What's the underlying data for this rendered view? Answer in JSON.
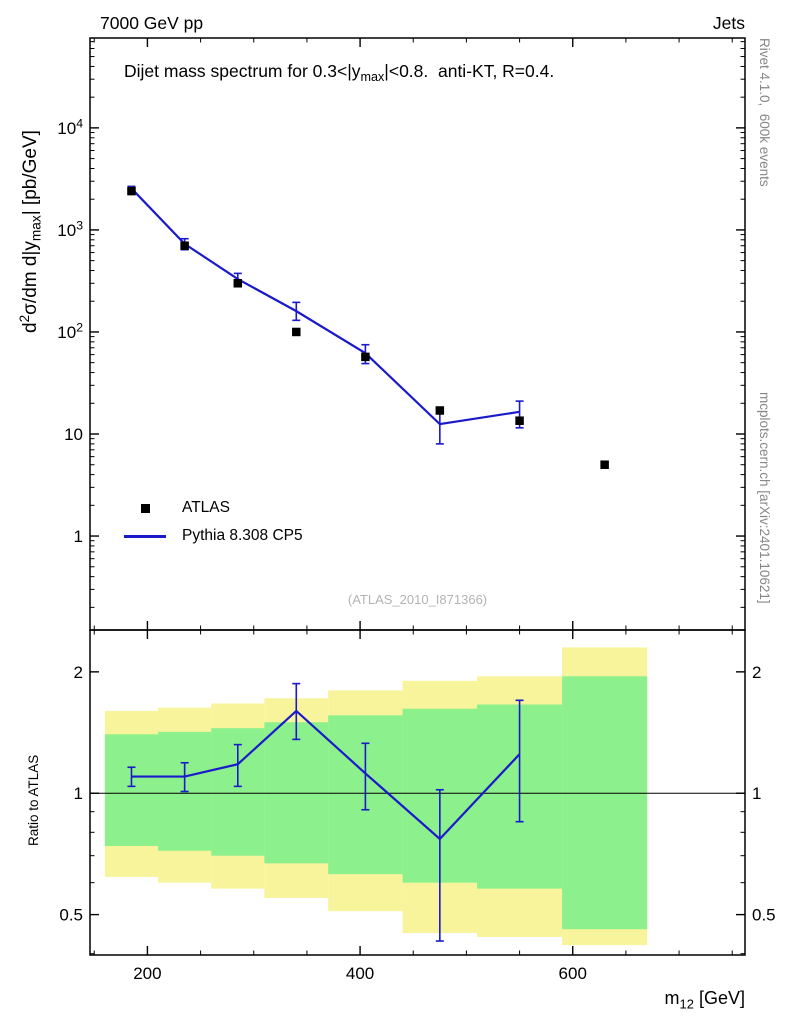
{
  "header": {
    "left": "7000 GeV pp",
    "right": "Jets"
  },
  "side_notes": {
    "top": "Rivet 4.1.0,  600k events",
    "bottom": "mcplots.cern.ch [arXiv:2401.10621]"
  },
  "watermark": "(ATLAS_2010_I871366)",
  "legend": [
    {
      "label": "ATLAS",
      "marker": "square",
      "color": "#000000"
    },
    {
      "label": "Pythia 8.308 CP5",
      "marker": "line",
      "color": "#1a1acb"
    }
  ],
  "colors": {
    "pythia": "#1a1acb",
    "band_yellow": "#f8f49c",
    "band_green": "#8cf08c",
    "frame": "#000000",
    "watermark": "#b3b3b3",
    "side_note": "#878787"
  },
  "chart_data": {
    "type": "line",
    "title": "Dijet mass spectrum for 0.3<|y_{max}|<0.8.  anti-KT, R=0.4.",
    "xlabel": "m_{12} [GeV]",
    "ylabel": "d^{2}σ/dm d|y_{max}| [pb/GeV]",
    "ratio_ylabel": "Ratio to ATLAS",
    "x_log": false,
    "xlim": [
      146,
      762
    ],
    "x_major_ticks": [
      200,
      400,
      600
    ],
    "x_minor_step": 50,
    "main": {
      "y_log": true,
      "ylim": [
        0.12,
        76000
      ],
      "y_major_ticks": [
        1,
        10,
        100,
        1000,
        10000
      ]
    },
    "ratio": {
      "y_log": true,
      "ylim": [
        0.397,
        2.54
      ],
      "y_major_ticks": [
        0.5,
        1,
        2
      ]
    },
    "bin_edges": [
      160,
      210,
      260,
      310,
      370,
      440,
      510,
      590,
      670
    ],
    "series": [
      {
        "name": "ATLAS",
        "type": "points",
        "x": [
          185,
          235,
          285,
          340,
          405,
          475,
          550,
          630
        ],
        "y": [
          2400,
          700,
          300,
          100,
          57,
          17,
          13.5,
          5
        ]
      },
      {
        "name": "Pythia 8.308 CP5",
        "type": "line",
        "x": [
          185,
          235,
          285,
          340,
          405,
          475,
          550
        ],
        "y": [
          2550,
          730,
          330,
          160,
          62,
          12.5,
          16.5
        ],
        "yerr_lo": [
          120,
          90,
          45,
          30,
          13,
          4.5,
          5
        ],
        "yerr_hi": [
          120,
          90,
          45,
          35,
          13,
          4.5,
          4.5
        ]
      }
    ],
    "ratio_series": {
      "x": [
        185,
        235,
        285,
        340,
        405,
        475,
        550
      ],
      "y": [
        1.1,
        1.1,
        1.18,
        1.6,
        1.12,
        0.77,
        1.25
      ],
      "err_lo": [
        0.06,
        0.09,
        0.14,
        0.24,
        0.21,
        0.34,
        0.4
      ],
      "err_hi": [
        0.06,
        0.09,
        0.14,
        0.27,
        0.21,
        0.25,
        0.45
      ]
    },
    "bands": {
      "yellow": {
        "lo": [
          0.62,
          0.6,
          0.58,
          0.55,
          0.51,
          0.45,
          0.44,
          0.42
        ],
        "hi": [
          1.6,
          1.63,
          1.67,
          1.72,
          1.8,
          1.9,
          1.95,
          2.3
        ]
      },
      "green": {
        "lo": [
          0.74,
          0.72,
          0.7,
          0.67,
          0.63,
          0.6,
          0.58,
          0.46
        ],
        "hi": [
          1.4,
          1.42,
          1.45,
          1.5,
          1.56,
          1.62,
          1.66,
          1.95
        ]
      }
    }
  }
}
